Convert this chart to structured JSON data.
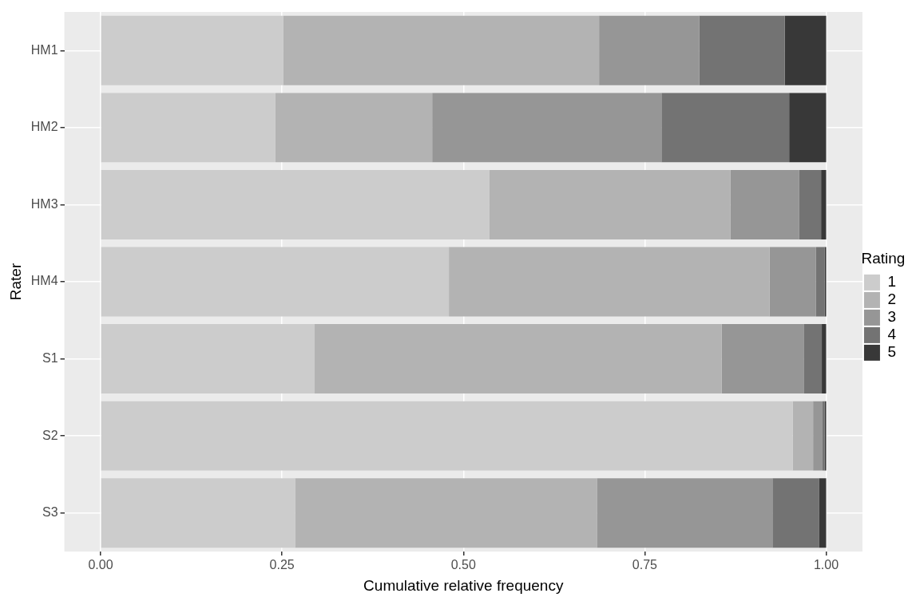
{
  "chart_data": {
    "type": "bar",
    "orientation": "horizontal",
    "stacked": true,
    "xlabel": "Cumulative relative frequency",
    "ylabel": "Rater",
    "legend_title": "Rating",
    "legend": "right",
    "grid": true,
    "categories": [
      "HM1",
      "HM2",
      "HM3",
      "HM4",
      "S1",
      "S2",
      "S3"
    ],
    "xlim": [
      -0.05,
      1.05
    ],
    "xticks": [
      {
        "value": 0,
        "label": "0.00"
      },
      {
        "value": 0.25,
        "label": "0.25"
      },
      {
        "value": 0.5,
        "label": "0.50"
      },
      {
        "value": 0.75,
        "label": "0.75"
      },
      {
        "value": 1,
        "label": "1.00"
      }
    ],
    "series": [
      {
        "name": "1",
        "color": "#cccccc",
        "values": [
          0.252,
          0.241,
          0.536,
          0.48,
          0.295,
          0.954,
          0.268
        ]
      },
      {
        "name": "2",
        "color": "#b3b3b3",
        "values": [
          0.435,
          0.216,
          0.332,
          0.442,
          0.561,
          0.028,
          0.416
        ]
      },
      {
        "name": "3",
        "color": "#969696",
        "values": [
          0.138,
          0.316,
          0.095,
          0.064,
          0.113,
          0.013,
          0.242
        ]
      },
      {
        "name": "4",
        "color": "#737373",
        "values": [
          0.118,
          0.176,
          0.03,
          0.012,
          0.025,
          0.003,
          0.064
        ]
      },
      {
        "name": "5",
        "color": "#383838",
        "values": [
          0.057,
          0.051,
          0.007,
          0.002,
          0.006,
          0.002,
          0.01
        ]
      }
    ]
  }
}
